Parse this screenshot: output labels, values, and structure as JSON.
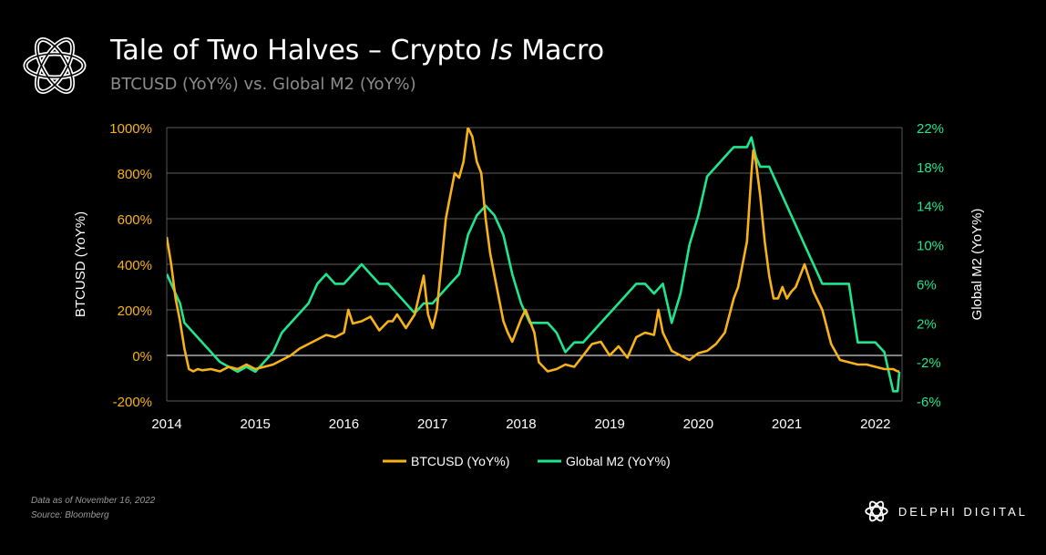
{
  "header": {
    "title_part1": "Tale of Two Halves – Crypto ",
    "title_italic": "Is",
    "title_part2": " Macro",
    "subtitle": "BTCUSD (YoY%) vs. Global M2 (YoY%)",
    "logo_icon": "delphi-knot-icon"
  },
  "footer": {
    "note_date": "Data as of November  16, 2022",
    "note_source": "Source: Bloomberg",
    "brand": "DELPHI DIGITAL",
    "brand_icon": "delphi-knot-icon"
  },
  "colors": {
    "btc": "#f7b217",
    "m2": "#1ee68e",
    "background": "#000000",
    "grid": "#7a7a7a",
    "text": "#ffffff"
  },
  "chart_data": {
    "type": "line",
    "title": "Tale of Two Halves – Crypto Is Macro",
    "subtitle": "BTCUSD (YoY%) vs. Global M2 (YoY%)",
    "x_tick_labels": [
      "2014",
      "2015",
      "2016",
      "2017",
      "2018",
      "2019",
      "2020",
      "2021",
      "2022"
    ],
    "xlim": [
      2014.0,
      2022.3
    ],
    "grid": true,
    "legend_position": "bottom-center",
    "y_left": {
      "label": "BTCUSD (YoY%)",
      "lim": [
        -200,
        1000
      ],
      "tick_labels": [
        "-200%",
        "0%",
        "200%",
        "400%",
        "600%",
        "800%",
        "1000%"
      ],
      "tick_values": [
        -200,
        0,
        200,
        400,
        600,
        800,
        1000
      ]
    },
    "y_right": {
      "label": "Global M2 (YoY%)",
      "lim": [
        -6,
        22
      ],
      "tick_labels": [
        "-6%",
        "-2%",
        "2%",
        "6%",
        "10%",
        "14%",
        "18%",
        "22%"
      ],
      "tick_values": [
        -6,
        -2,
        2,
        6,
        10,
        14,
        18,
        22
      ]
    },
    "series": [
      {
        "name": "BTCUSD (YoY%)",
        "axis": "left",
        "color": "#f7b217",
        "x": [
          2014.0,
          2014.05,
          2014.1,
          2014.15,
          2014.2,
          2014.25,
          2014.3,
          2014.35,
          2014.4,
          2014.5,
          2014.6,
          2014.7,
          2014.8,
          2014.9,
          2015.0,
          2015.1,
          2015.2,
          2015.3,
          2015.4,
          2015.5,
          2015.6,
          2015.7,
          2015.8,
          2015.9,
          2016.0,
          2016.05,
          2016.1,
          2016.2,
          2016.3,
          2016.4,
          2016.5,
          2016.55,
          2016.6,
          2016.7,
          2016.8,
          2016.9,
          2016.95,
          2017.0,
          2017.05,
          2017.1,
          2017.15,
          2017.2,
          2017.25,
          2017.3,
          2017.35,
          2017.4,
          2017.45,
          2017.5,
          2017.55,
          2017.6,
          2017.65,
          2017.7,
          2017.75,
          2017.8,
          2017.85,
          2017.9,
          2018.0,
          2018.05,
          2018.1,
          2018.15,
          2018.2,
          2018.3,
          2018.4,
          2018.5,
          2018.6,
          2018.7,
          2018.8,
          2018.9,
          2019.0,
          2019.1,
          2019.2,
          2019.3,
          2019.4,
          2019.5,
          2019.55,
          2019.6,
          2019.7,
          2019.8,
          2019.9,
          2020.0,
          2020.1,
          2020.2,
          2020.3,
          2020.4,
          2020.45,
          2020.5,
          2020.55,
          2020.6,
          2020.62,
          2020.65,
          2020.7,
          2020.75,
          2020.8,
          2020.85,
          2020.9,
          2020.95,
          2021.0,
          2021.05,
          2021.1,
          2021.15,
          2021.2,
          2021.3,
          2021.4,
          2021.5,
          2021.6,
          2021.7,
          2021.8,
          2021.9,
          2022.0,
          2022.1,
          2022.2,
          2022.25,
          2022.27
        ],
        "values": [
          520,
          400,
          250,
          150,
          30,
          -60,
          -70,
          -60,
          -65,
          -60,
          -70,
          -50,
          -60,
          -40,
          -60,
          -50,
          -40,
          -20,
          0,
          30,
          50,
          70,
          90,
          80,
          100,
          200,
          140,
          150,
          170,
          110,
          150,
          150,
          180,
          120,
          180,
          350,
          180,
          120,
          200,
          400,
          600,
          700,
          800,
          780,
          850,
          1000,
          960,
          850,
          800,
          600,
          450,
          350,
          250,
          150,
          100,
          60,
          160,
          200,
          150,
          100,
          -30,
          -70,
          -60,
          -40,
          -50,
          0,
          50,
          60,
          0,
          40,
          -10,
          80,
          100,
          90,
          200,
          100,
          20,
          0,
          -20,
          10,
          20,
          50,
          100,
          250,
          300,
          400,
          500,
          800,
          900,
          850,
          700,
          500,
          350,
          250,
          250,
          300,
          250,
          280,
          300,
          350,
          400,
          280,
          200,
          50,
          -20,
          -30,
          -40,
          -40,
          -50,
          -60,
          -60,
          -70,
          -70
        ]
      },
      {
        "name": "Global M2 (YoY%)",
        "axis": "right",
        "color": "#1ee68e",
        "x": [
          2014.0,
          2014.05,
          2014.1,
          2014.15,
          2014.2,
          2014.3,
          2014.4,
          2014.5,
          2014.6,
          2014.7,
          2014.8,
          2014.9,
          2015.0,
          2015.1,
          2015.2,
          2015.3,
          2015.4,
          2015.5,
          2015.6,
          2015.7,
          2015.8,
          2015.9,
          2016.0,
          2016.1,
          2016.2,
          2016.3,
          2016.4,
          2016.5,
          2016.6,
          2016.7,
          2016.8,
          2016.9,
          2017.0,
          2017.1,
          2017.2,
          2017.3,
          2017.4,
          2017.5,
          2017.6,
          2017.7,
          2017.8,
          2017.9,
          2018.0,
          2018.1,
          2018.2,
          2018.3,
          2018.4,
          2018.5,
          2018.6,
          2018.7,
          2018.8,
          2018.9,
          2019.0,
          2019.1,
          2019.2,
          2019.3,
          2019.4,
          2019.5,
          2019.6,
          2019.7,
          2019.8,
          2019.9,
          2020.0,
          2020.1,
          2020.2,
          2020.3,
          2020.4,
          2020.5,
          2020.55,
          2020.6,
          2020.65,
          2020.7,
          2020.8,
          2020.9,
          2021.0,
          2021.1,
          2021.2,
          2021.3,
          2021.4,
          2021.5,
          2021.6,
          2021.7,
          2021.8,
          2021.9,
          2022.0,
          2022.1,
          2022.15,
          2022.2,
          2022.25,
          2022.27
        ],
        "values": [
          7,
          6,
          5,
          4,
          2,
          1,
          0,
          -1,
          -2,
          -2.5,
          -3,
          -2.5,
          -3,
          -2,
          -1,
          1,
          2,
          3,
          4,
          6,
          7,
          6,
          6,
          7,
          8,
          7,
          6,
          6,
          5,
          4,
          3,
          4,
          4,
          5,
          6,
          7,
          11,
          13,
          14,
          13,
          11,
          7,
          4,
          2,
          2,
          2,
          1,
          -1,
          0,
          0,
          1,
          2,
          3,
          4,
          5,
          6,
          6,
          5,
          6,
          2,
          5,
          10,
          13,
          17,
          18,
          19,
          20,
          20,
          20,
          21,
          19,
          18,
          18,
          16,
          14,
          12,
          10,
          8,
          6,
          6,
          6,
          6,
          0,
          0,
          0,
          -1,
          -3,
          -5,
          -5,
          -3
        ]
      }
    ]
  }
}
